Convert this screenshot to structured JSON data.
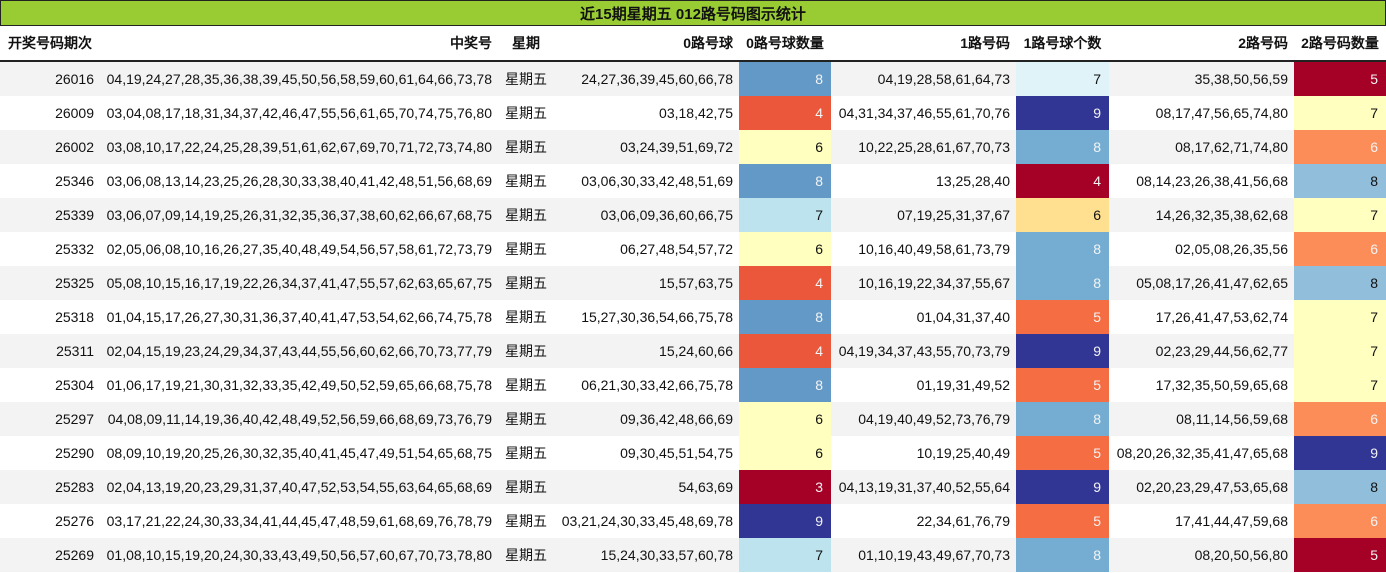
{
  "title": "近15期星期五 012路号码图示统计",
  "headers": [
    "开奖号码期次",
    "中奖号",
    "星期",
    "0路号球",
    "0路号球数量",
    "1路号码",
    "1路号球个数",
    "2路号码",
    "2路号码数量"
  ],
  "rows": [
    {
      "issue": "26016",
      "numbers": "04,19,24,27,28,35,36,38,39,45,50,56,58,59,60,61,64,66,73,78",
      "weekday": "星期五",
      "r0": "24,27,36,39,45,60,66,78",
      "c0": "8",
      "c0_bg": "#6399c6",
      "c0_fg": "light",
      "r1": "04,19,28,58,61,64,73",
      "c1": "7",
      "c1_bg": "#e0f3f8",
      "c1_fg": "dark",
      "r2": "35,38,50,56,59",
      "c2": "5",
      "c2_bg": "#a50026",
      "c2_fg": "light"
    },
    {
      "issue": "26009",
      "numbers": "03,04,08,17,18,31,34,37,42,46,47,55,56,61,65,70,74,75,76,80",
      "weekday": "星期五",
      "r0": "03,18,42,75",
      "c0": "4",
      "c0_bg": "#ea573b",
      "c0_fg": "light",
      "r1": "04,31,34,37,46,55,61,70,76",
      "c1": "9",
      "c1_bg": "#313695",
      "c1_fg": "light",
      "r2": "08,17,47,56,65,74,80",
      "c2": "7",
      "c2_bg": "#ffffbf",
      "c2_fg": "dark"
    },
    {
      "issue": "26002",
      "numbers": "03,08,10,17,22,24,25,28,39,51,61,62,67,69,70,71,72,73,74,80",
      "weekday": "星期五",
      "r0": "03,24,39,51,69,72",
      "c0": "6",
      "c0_bg": "#ffffbf",
      "c0_fg": "dark",
      "r1": "10,22,25,28,61,67,70,73",
      "c1": "8",
      "c1_bg": "#74add1",
      "c1_fg": "light",
      "r2": "08,17,62,71,74,80",
      "c2": "6",
      "c2_bg": "#fc8d59",
      "c2_fg": "light"
    },
    {
      "issue": "25346",
      "numbers": "03,06,08,13,14,23,25,26,28,30,33,38,40,41,42,48,51,56,68,69",
      "weekday": "星期五",
      "r0": "03,06,30,33,42,48,51,69",
      "c0": "8",
      "c0_bg": "#6399c6",
      "c0_fg": "light",
      "r1": "13,25,28,40",
      "c1": "4",
      "c1_bg": "#a50026",
      "c1_fg": "light",
      "r2": "08,14,23,26,38,41,56,68",
      "c2": "8",
      "c2_bg": "#91bfdb",
      "c2_fg": "dark"
    },
    {
      "issue": "25339",
      "numbers": "03,06,07,09,14,19,25,26,31,32,35,36,37,38,60,62,66,67,68,75",
      "weekday": "星期五",
      "r0": "03,06,09,36,60,66,75",
      "c0": "7",
      "c0_bg": "#bde3ee",
      "c0_fg": "dark",
      "r1": "07,19,25,31,37,67",
      "c1": "6",
      "c1_bg": "#fee090",
      "c1_fg": "dark",
      "r2": "14,26,32,35,38,62,68",
      "c2": "7",
      "c2_bg": "#ffffbf",
      "c2_fg": "dark"
    },
    {
      "issue": "25332",
      "numbers": "02,05,06,08,10,16,26,27,35,40,48,49,54,56,57,58,61,72,73,79",
      "weekday": "星期五",
      "r0": "06,27,48,54,57,72",
      "c0": "6",
      "c0_bg": "#ffffbf",
      "c0_fg": "dark",
      "r1": "10,16,40,49,58,61,73,79",
      "c1": "8",
      "c1_bg": "#74add1",
      "c1_fg": "light",
      "r2": "02,05,08,26,35,56",
      "c2": "6",
      "c2_bg": "#fc8d59",
      "c2_fg": "light"
    },
    {
      "issue": "25325",
      "numbers": "05,08,10,15,16,17,19,22,26,34,37,41,47,55,57,62,63,65,67,75",
      "weekday": "星期五",
      "r0": "15,57,63,75",
      "c0": "4",
      "c0_bg": "#ea573b",
      "c0_fg": "light",
      "r1": "10,16,19,22,34,37,55,67",
      "c1": "8",
      "c1_bg": "#74add1",
      "c1_fg": "light",
      "r2": "05,08,17,26,41,47,62,65",
      "c2": "8",
      "c2_bg": "#91bfdb",
      "c2_fg": "dark"
    },
    {
      "issue": "25318",
      "numbers": "01,04,15,17,26,27,30,31,36,37,40,41,47,53,54,62,66,74,75,78",
      "weekday": "星期五",
      "r0": "15,27,30,36,54,66,75,78",
      "c0": "8",
      "c0_bg": "#6399c6",
      "c0_fg": "light",
      "r1": "01,04,31,37,40",
      "c1": "5",
      "c1_bg": "#f46d43",
      "c1_fg": "light",
      "r2": "17,26,41,47,53,62,74",
      "c2": "7",
      "c2_bg": "#ffffbf",
      "c2_fg": "dark"
    },
    {
      "issue": "25311",
      "numbers": "02,04,15,19,23,24,29,34,37,43,44,55,56,60,62,66,70,73,77,79",
      "weekday": "星期五",
      "r0": "15,24,60,66",
      "c0": "4",
      "c0_bg": "#ea573b",
      "c0_fg": "light",
      "r1": "04,19,34,37,43,55,70,73,79",
      "c1": "9",
      "c1_bg": "#313695",
      "c1_fg": "light",
      "r2": "02,23,29,44,56,62,77",
      "c2": "7",
      "c2_bg": "#ffffbf",
      "c2_fg": "dark"
    },
    {
      "issue": "25304",
      "numbers": "01,06,17,19,21,30,31,32,33,35,42,49,50,52,59,65,66,68,75,78",
      "weekday": "星期五",
      "r0": "06,21,30,33,42,66,75,78",
      "c0": "8",
      "c0_bg": "#6399c6",
      "c0_fg": "light",
      "r1": "01,19,31,49,52",
      "c1": "5",
      "c1_bg": "#f46d43",
      "c1_fg": "light",
      "r2": "17,32,35,50,59,65,68",
      "c2": "7",
      "c2_bg": "#ffffbf",
      "c2_fg": "dark"
    },
    {
      "issue": "25297",
      "numbers": "04,08,09,11,14,19,36,40,42,48,49,52,56,59,66,68,69,73,76,79",
      "weekday": "星期五",
      "r0": "09,36,42,48,66,69",
      "c0": "6",
      "c0_bg": "#ffffbf",
      "c0_fg": "dark",
      "r1": "04,19,40,49,52,73,76,79",
      "c1": "8",
      "c1_bg": "#74add1",
      "c1_fg": "light",
      "r2": "08,11,14,56,59,68",
      "c2": "6",
      "c2_bg": "#fc8d59",
      "c2_fg": "light"
    },
    {
      "issue": "25290",
      "numbers": "08,09,10,19,20,25,26,30,32,35,40,41,45,47,49,51,54,65,68,75",
      "weekday": "星期五",
      "r0": "09,30,45,51,54,75",
      "c0": "6",
      "c0_bg": "#ffffbf",
      "c0_fg": "dark",
      "r1": "10,19,25,40,49",
      "c1": "5",
      "c1_bg": "#f46d43",
      "c1_fg": "light",
      "r2": "08,20,26,32,35,41,47,65,68",
      "c2": "9",
      "c2_bg": "#313695",
      "c2_fg": "light"
    },
    {
      "issue": "25283",
      "numbers": "02,04,13,19,20,23,29,31,37,40,47,52,53,54,55,63,64,65,68,69",
      "weekday": "星期五",
      "r0": "54,63,69",
      "c0": "3",
      "c0_bg": "#a50026",
      "c0_fg": "light",
      "r1": "04,13,19,31,37,40,52,55,64",
      "c1": "9",
      "c1_bg": "#313695",
      "c1_fg": "light",
      "r2": "02,20,23,29,47,53,65,68",
      "c2": "8",
      "c2_bg": "#91bfdb",
      "c2_fg": "dark"
    },
    {
      "issue": "25276",
      "numbers": "03,17,21,22,24,30,33,34,41,44,45,47,48,59,61,68,69,76,78,79",
      "weekday": "星期五",
      "r0": "03,21,24,30,33,45,48,69,78",
      "c0": "9",
      "c0_bg": "#313695",
      "c0_fg": "light",
      "r1": "22,34,61,76,79",
      "c1": "5",
      "c1_bg": "#f46d43",
      "c1_fg": "light",
      "r2": "17,41,44,47,59,68",
      "c2": "6",
      "c2_bg": "#fc8d59",
      "c2_fg": "light"
    },
    {
      "issue": "25269",
      "numbers": "01,08,10,15,19,20,24,30,33,43,49,50,56,57,60,67,70,73,78,80",
      "weekday": "星期五",
      "r0": "15,24,30,33,57,60,78",
      "c0": "7",
      "c0_bg": "#bde3ee",
      "c0_fg": "dark",
      "r1": "01,10,19,43,49,67,70,73",
      "c1": "8",
      "c1_bg": "#74add1",
      "c1_fg": "light",
      "r2": "08,20,50,56,80",
      "c2": "5",
      "c2_bg": "#a50026",
      "c2_fg": "light"
    }
  ],
  "colors": {
    "title_bg": "#99cc33",
    "row_alt_bg": "#f3f3f3"
  }
}
